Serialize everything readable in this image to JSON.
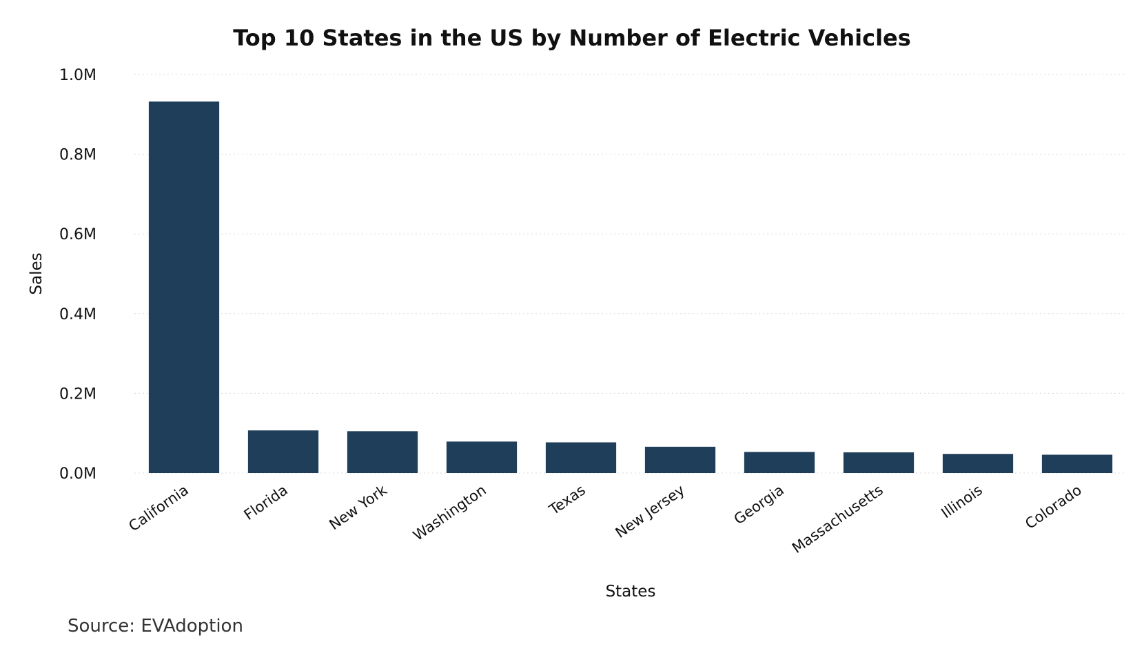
{
  "chart_data": {
    "type": "bar",
    "title": "Top 10 States in the US by Number of Electric Vehicles",
    "xlabel": "States",
    "ylabel": "Sales",
    "categories": [
      "California",
      "Florida",
      "New York",
      "Washington",
      "Texas",
      "New Jersey",
      "Georgia",
      "Massachusetts",
      "Illinois",
      "Colorado"
    ],
    "values": [
      932000,
      107000,
      105000,
      79000,
      77000,
      66000,
      53000,
      52000,
      48000,
      46000
    ],
    "ylim": [
      0,
      1000000
    ],
    "yticks": [
      0,
      200000,
      400000,
      600000,
      800000,
      1000000
    ],
    "ytick_labels": [
      "0.0M",
      "0.2M",
      "0.4M",
      "0.6M",
      "0.8M",
      "1.0M"
    ],
    "grid": "horizontal dotted",
    "bar_color": "#1f3e59",
    "source": "Source: EVAdoption"
  }
}
